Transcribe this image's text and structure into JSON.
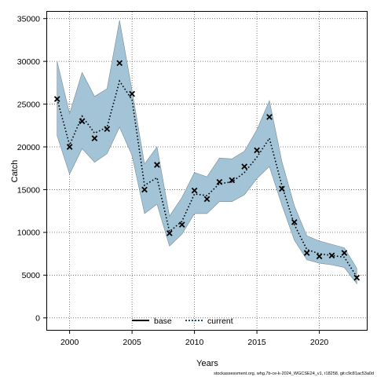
{
  "chart_data": {
    "type": "line",
    "xlabel": "Years",
    "ylabel": "Catch",
    "xlim": [
      1998.2,
      2023.8
    ],
    "ylim": [
      -1400,
      35800
    ],
    "x_ticks": [
      2000,
      2005,
      2010,
      2015,
      2020
    ],
    "y_ticks": [
      0,
      5000,
      10000,
      15000,
      20000,
      25000,
      30000,
      35000
    ],
    "grid": true,
    "legend_position": "bottom-center",
    "legend": [
      {
        "label": "base",
        "style": "solid",
        "color": "#000000"
      },
      {
        "label": "current",
        "style": "dotted",
        "color": "#000000",
        "band_color": "#a3c4d7"
      }
    ],
    "x": [
      1999,
      2000,
      2001,
      2002,
      2003,
      2004,
      2005,
      2006,
      2007,
      2008,
      2009,
      2010,
      2011,
      2012,
      2013,
      2014,
      2015,
      2016,
      2017,
      2018,
      2019,
      2020,
      2021,
      2022,
      2023
    ],
    "series": [
      {
        "name": "current",
        "values": [
          25600,
          20200,
          23600,
          21600,
          22300,
          27700,
          25500,
          15500,
          16400,
          10100,
          11300,
          14500,
          14300,
          15700,
          15900,
          17000,
          18800,
          21000,
          15500,
          10900,
          8000,
          7500,
          7300,
          7100,
          4800
        ],
        "lower": [
          21300,
          16800,
          19800,
          18200,
          19200,
          22300,
          19000,
          12200,
          13300,
          8400,
          9800,
          12200,
          12200,
          13600,
          13600,
          14400,
          16300,
          17700,
          13200,
          9100,
          6800,
          6400,
          6200,
          5900,
          4000
        ],
        "upper": [
          30000,
          23900,
          28700,
          25900,
          26800,
          34800,
          26600,
          18000,
          20000,
          11900,
          14100,
          17000,
          16500,
          18700,
          18600,
          19500,
          22000,
          25400,
          18300,
          13100,
          9600,
          9000,
          8600,
          8200,
          5800
        ]
      },
      {
        "name": "observed",
        "marker": "x",
        "values": [
          25600,
          20000,
          23000,
          21000,
          22100,
          29800,
          26200,
          15000,
          17900,
          9900,
          10900,
          14900,
          13900,
          15900,
          16100,
          17700,
          19600,
          23500,
          15100,
          11200,
          7600,
          7200,
          7300,
          7600,
          4700
        ]
      }
    ]
  },
  "footer_text": "stockassessment.org, whg.7b-ce-k-2024_WGCSE24_v1, r18258, git:c9c81ac53a0d"
}
